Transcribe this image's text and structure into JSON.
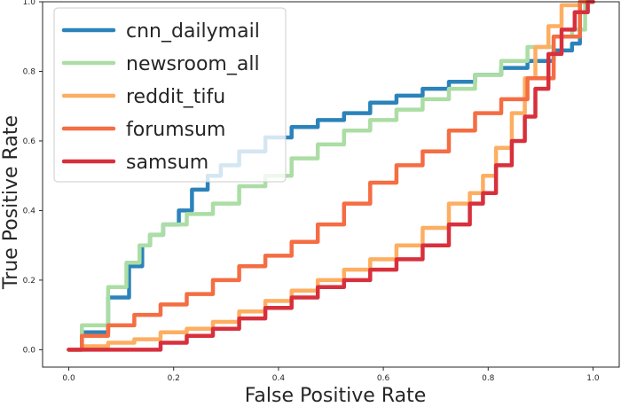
{
  "chart_data": {
    "type": "line",
    "title": "",
    "xlabel": "False Positive Rate",
    "ylabel": "True Positive Rate",
    "xlim": [
      -0.05,
      1.05
    ],
    "ylim": [
      -0.05,
      1.0
    ],
    "xticks": [
      0.0,
      0.2,
      0.4,
      0.6,
      0.8,
      1.0
    ],
    "yticks": [
      0.0,
      0.2,
      0.4,
      0.6,
      0.8,
      1.0
    ],
    "xtick_labels": [
      "0.0",
      "0.2",
      "0.4",
      "0.6",
      "0.8",
      "1.0"
    ],
    "ytick_labels": [
      "0.0",
      "0.2",
      "0.4",
      "0.6",
      "0.8",
      "1.0"
    ],
    "grid": false,
    "legend_position": "top-left",
    "series": [
      {
        "name": "cnn_dailymail",
        "color": "#2b83ba",
        "x": [
          0.0,
          0.05,
          0.1,
          0.13,
          0.15,
          0.16,
          0.2,
          0.22,
          0.25,
          0.28,
          0.3,
          0.35,
          0.4,
          0.45,
          0.5,
          0.55,
          0.6,
          0.65,
          0.7,
          0.75,
          0.8,
          0.85,
          0.9,
          0.95,
          0.97,
          0.98,
          1.0
        ],
        "y": [
          0.0,
          0.05,
          0.15,
          0.24,
          0.3,
          0.33,
          0.36,
          0.4,
          0.46,
          0.5,
          0.53,
          0.57,
          0.61,
          0.64,
          0.66,
          0.68,
          0.71,
          0.73,
          0.75,
          0.77,
          0.79,
          0.81,
          0.83,
          0.86,
          0.88,
          0.97,
          1.0
        ]
      },
      {
        "name": "newsroom_all",
        "color": "#abdda4",
        "x": [
          0.0,
          0.05,
          0.1,
          0.12,
          0.15,
          0.16,
          0.2,
          0.25,
          0.3,
          0.35,
          0.4,
          0.45,
          0.5,
          0.55,
          0.6,
          0.65,
          0.7,
          0.75,
          0.8,
          0.85,
          0.9,
          0.95,
          0.97,
          1.0
        ],
        "y": [
          0.0,
          0.07,
          0.18,
          0.25,
          0.3,
          0.33,
          0.36,
          0.39,
          0.42,
          0.47,
          0.5,
          0.55,
          0.59,
          0.63,
          0.66,
          0.69,
          0.72,
          0.75,
          0.79,
          0.83,
          0.87,
          0.9,
          0.92,
          1.0
        ]
      },
      {
        "name": "reddit_tifu",
        "color": "#fdae61",
        "x": [
          0.0,
          0.05,
          0.1,
          0.15,
          0.2,
          0.25,
          0.3,
          0.35,
          0.4,
          0.45,
          0.5,
          0.55,
          0.6,
          0.65,
          0.7,
          0.75,
          0.78,
          0.8,
          0.83,
          0.86,
          0.88,
          0.9,
          0.93,
          0.95,
          1.0
        ],
        "y": [
          0.0,
          0.01,
          0.02,
          0.03,
          0.05,
          0.06,
          0.08,
          0.11,
          0.14,
          0.17,
          0.2,
          0.23,
          0.26,
          0.3,
          0.35,
          0.42,
          0.45,
          0.5,
          0.58,
          0.68,
          0.78,
          0.87,
          0.93,
          0.99,
          1.0
        ]
      },
      {
        "name": "forumsum",
        "color": "#f46d43",
        "x": [
          0.0,
          0.05,
          0.1,
          0.15,
          0.2,
          0.25,
          0.3,
          0.35,
          0.4,
          0.45,
          0.5,
          0.55,
          0.6,
          0.65,
          0.7,
          0.75,
          0.8,
          0.85,
          0.9,
          0.95,
          1.0
        ],
        "y": [
          0.0,
          0.04,
          0.07,
          0.1,
          0.13,
          0.16,
          0.2,
          0.24,
          0.27,
          0.31,
          0.36,
          0.42,
          0.48,
          0.53,
          0.57,
          0.63,
          0.68,
          0.72,
          0.78,
          0.9,
          1.0
        ]
      },
      {
        "name": "samsum",
        "color": "#d7303c",
        "x": [
          0.0,
          0.05,
          0.1,
          0.15,
          0.2,
          0.25,
          0.3,
          0.35,
          0.4,
          0.45,
          0.5,
          0.55,
          0.6,
          0.65,
          0.7,
          0.75,
          0.78,
          0.8,
          0.83,
          0.86,
          0.88,
          0.9,
          0.93,
          0.95,
          0.98,
          1.0
        ],
        "y": [
          0.0,
          0.0,
          0.0,
          0.0,
          0.02,
          0.04,
          0.06,
          0.09,
          0.12,
          0.15,
          0.18,
          0.2,
          0.23,
          0.26,
          0.3,
          0.36,
          0.42,
          0.45,
          0.53,
          0.6,
          0.67,
          0.75,
          0.85,
          0.92,
          0.97,
          1.0
        ]
      }
    ]
  }
}
